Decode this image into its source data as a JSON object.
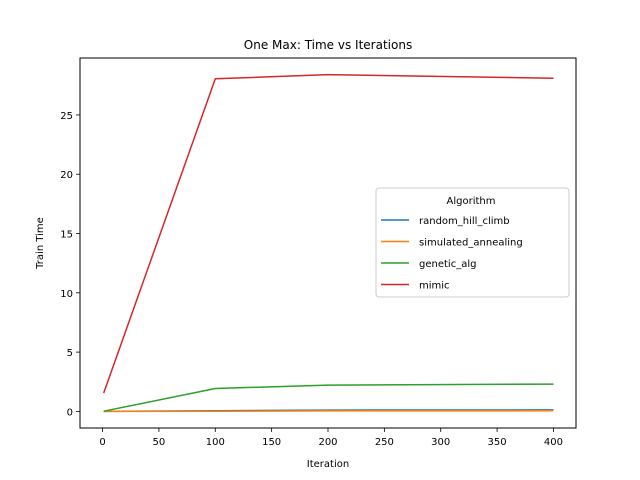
{
  "chart_data": {
    "type": "line",
    "title": "One Max: Time vs Iterations",
    "xlabel": "Iteration",
    "ylabel": "Train Time",
    "xlim": [
      -20,
      420
    ],
    "ylim": [
      -1.4,
      29.8
    ],
    "xticks": [
      0,
      50,
      100,
      150,
      200,
      250,
      300,
      350,
      400
    ],
    "yticks": [
      0,
      5,
      10,
      15,
      20,
      25
    ],
    "grid": false,
    "legend": {
      "title": "Algorithm",
      "placement": "center-right"
    },
    "x": [
      1,
      100,
      200,
      400
    ],
    "series": [
      {
        "name": "random_hill_climb",
        "color": "#1f77b4",
        "values": [
          0.0,
          0.06,
          0.11,
          0.13
        ]
      },
      {
        "name": "simulated_annealing",
        "color": "#ff7f0e",
        "values": [
          0.0,
          0.02,
          0.04,
          0.05
        ]
      },
      {
        "name": "genetic_alg",
        "color": "#2ca02c",
        "values": [
          0.02,
          1.93,
          2.22,
          2.3
        ]
      },
      {
        "name": "mimic",
        "color": "#d62728",
        "values": [
          1.55,
          28.05,
          28.4,
          28.1
        ]
      }
    ]
  }
}
